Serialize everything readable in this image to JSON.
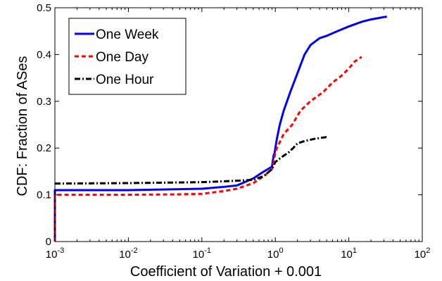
{
  "chart_data": {
    "type": "line",
    "xlabel": "Coefficient of Variation + 0.001",
    "ylabel": "CDF: Fraction of ASes",
    "x_scale": "log",
    "xlim": [
      0.001,
      100
    ],
    "ylim": [
      0,
      0.5
    ],
    "x_ticks": [
      {
        "base": "10",
        "exp": "-3",
        "value": 0.001
      },
      {
        "base": "10",
        "exp": "-2",
        "value": 0.01
      },
      {
        "base": "10",
        "exp": "-1",
        "value": 0.1
      },
      {
        "base": "10",
        "exp": "0",
        "value": 1
      },
      {
        "base": "10",
        "exp": "1",
        "value": 10
      },
      {
        "base": "10",
        "exp": "2",
        "value": 100
      }
    ],
    "y_ticks": [
      {
        "label": "0",
        "value": 0
      },
      {
        "label": "0.1",
        "value": 0.1
      },
      {
        "label": "0.2",
        "value": 0.2
      },
      {
        "label": "0.3",
        "value": 0.3
      },
      {
        "label": "0.4",
        "value": 0.4
      },
      {
        "label": "0.5",
        "value": 0.5
      }
    ],
    "legend_position": "top-left",
    "series": [
      {
        "name": "One Week",
        "color": "#0000ff",
        "dash": "solid",
        "points": [
          [
            0.001,
            0
          ],
          [
            0.001,
            0.11
          ],
          [
            0.01,
            0.11
          ],
          [
            0.1,
            0.113
          ],
          [
            0.2,
            0.117
          ],
          [
            0.3,
            0.12
          ],
          [
            0.5,
            0.135
          ],
          [
            0.7,
            0.15
          ],
          [
            0.9,
            0.16
          ],
          [
            0.95,
            0.185
          ],
          [
            0.98,
            0.19
          ],
          [
            1.0,
            0.2
          ],
          [
            1.05,
            0.22
          ],
          [
            1.15,
            0.25
          ],
          [
            1.3,
            0.28
          ],
          [
            1.6,
            0.32
          ],
          [
            2.0,
            0.36
          ],
          [
            2.5,
            0.4
          ],
          [
            3.0,
            0.42
          ],
          [
            4.0,
            0.435
          ],
          [
            5.0,
            0.44
          ],
          [
            7.0,
            0.45
          ],
          [
            10,
            0.46
          ],
          [
            15,
            0.47
          ],
          [
            20,
            0.475
          ],
          [
            30,
            0.48
          ],
          [
            33,
            0.481
          ]
        ]
      },
      {
        "name": "One Day",
        "color": "#ff0000",
        "dash": "dashed",
        "points": [
          [
            0.001,
            0
          ],
          [
            0.001,
            0.1
          ],
          [
            0.01,
            0.1
          ],
          [
            0.05,
            0.101
          ],
          [
            0.1,
            0.102
          ],
          [
            0.2,
            0.108
          ],
          [
            0.3,
            0.113
          ],
          [
            0.5,
            0.125
          ],
          [
            0.7,
            0.14
          ],
          [
            0.9,
            0.155
          ],
          [
            0.95,
            0.17
          ],
          [
            1.0,
            0.19
          ],
          [
            1.05,
            0.2
          ],
          [
            1.3,
            0.23
          ],
          [
            1.7,
            0.25
          ],
          [
            2.2,
            0.28
          ],
          [
            3.0,
            0.3
          ],
          [
            4.5,
            0.32
          ],
          [
            6.0,
            0.34
          ],
          [
            8.0,
            0.355
          ],
          [
            10,
            0.37
          ],
          [
            12,
            0.385
          ],
          [
            15,
            0.395
          ]
        ]
      },
      {
        "name": "One Hour",
        "color": "#000000",
        "dash": "dashdot",
        "points": [
          [
            0.001,
            0.124
          ],
          [
            0.01,
            0.125
          ],
          [
            0.1,
            0.127
          ],
          [
            0.3,
            0.13
          ],
          [
            0.5,
            0.132
          ],
          [
            0.7,
            0.14
          ],
          [
            0.9,
            0.155
          ],
          [
            1.0,
            0.17
          ],
          [
            1.2,
            0.18
          ],
          [
            1.5,
            0.19
          ],
          [
            1.75,
            0.2
          ],
          [
            2.0,
            0.21
          ],
          [
            2.5,
            0.215
          ],
          [
            3.5,
            0.22
          ],
          [
            5.3,
            0.224
          ]
        ]
      }
    ]
  }
}
